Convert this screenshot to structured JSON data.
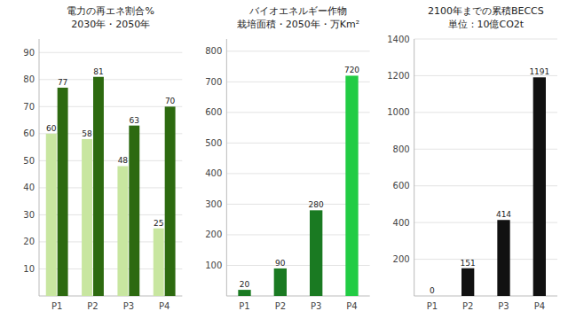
{
  "chart_data": [
    {
      "type": "bar",
      "title": "電力の再エネ割合%",
      "subtitle": "2030年・2050年",
      "categories": [
        "P1",
        "P2",
        "P3",
        "P4"
      ],
      "series": [
        {
          "color": "#c8e6a0",
          "values": [
            60,
            58,
            48,
            25
          ]
        },
        {
          "color": "#2d6a10",
          "values": [
            77,
            81,
            63,
            70
          ]
        }
      ],
      "ylim": [
        0,
        95
      ],
      "yticks": [
        10,
        20,
        30,
        40,
        50,
        60,
        70,
        80,
        90
      ],
      "grid": true,
      "data_labels": true
    },
    {
      "type": "bar",
      "title": "バイオエネルギー作物",
      "subtitle": "栽培面積・2050年・万Km²",
      "categories": [
        "P1",
        "P2",
        "P3",
        "P4"
      ],
      "values": [
        20,
        90,
        280,
        720
      ],
      "colors": [
        "#1a7a22",
        "#1a7a22",
        "#1a7a22",
        "#22cc44"
      ],
      "ylim": [
        0,
        840
      ],
      "yticks": [
        100,
        200,
        300,
        400,
        500,
        600,
        700,
        800
      ],
      "grid": true,
      "data_labels": true
    },
    {
      "type": "bar",
      "title": "2100年までの累積BECCS",
      "subtitle": "単位：10億CO2t",
      "categories": [
        "P1",
        "P2",
        "P3",
        "P4"
      ],
      "values": [
        0,
        151,
        414,
        1191
      ],
      "color": "#111111",
      "ylim": [
        0,
        1400
      ],
      "yticks": [
        200,
        400,
        600,
        800,
        1000,
        1200,
        1400
      ],
      "grid": true,
      "data_labels": true
    }
  ]
}
